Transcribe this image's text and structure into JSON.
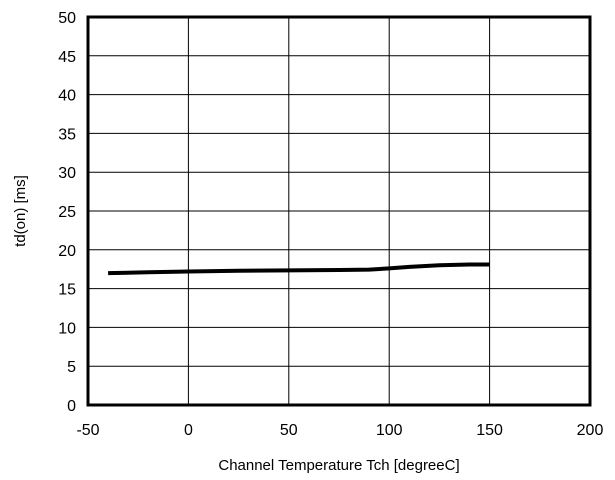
{
  "chart_data": {
    "type": "line",
    "title": "",
    "xlabel": "Channel Temperature   Tch [degreeC]",
    "ylabel": "td(on) [ms]",
    "xlim": [
      -50,
      200
    ],
    "ylim": [
      0,
      50
    ],
    "xticks": [
      "-50",
      "0",
      "50",
      "100",
      "150",
      "200"
    ],
    "yticks": [
      "0",
      "5",
      "10",
      "15",
      "20",
      "25",
      "30",
      "35",
      "40",
      "45",
      "50"
    ],
    "grid": true,
    "series": [
      {
        "x": [
          -40,
          -20,
          0,
          25,
          50,
          75,
          90,
          100,
          110,
          125,
          140,
          150
        ],
        "y": [
          17.0,
          17.1,
          17.2,
          17.3,
          17.35,
          17.4,
          17.45,
          17.6,
          17.8,
          18.0,
          18.1,
          18.1
        ],
        "color": "#000000"
      }
    ]
  }
}
